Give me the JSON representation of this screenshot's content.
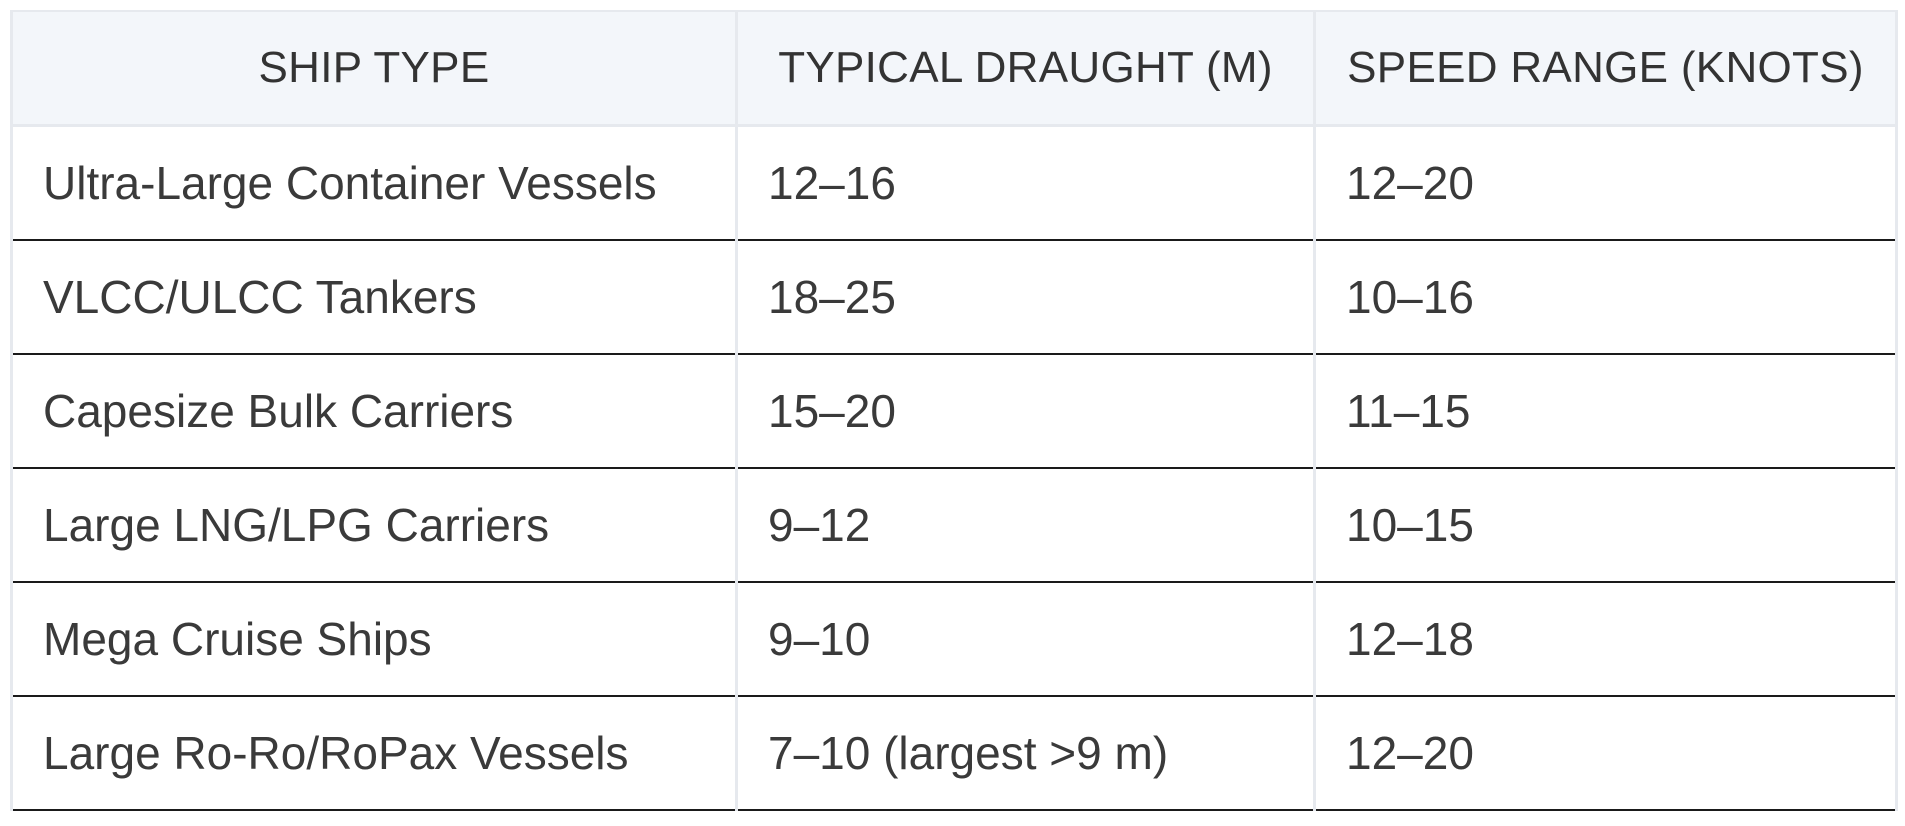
{
  "table": {
    "headers": [
      "SHIP TYPE",
      "TYPICAL DRAUGHT (M)",
      "SPEED RANGE (KNOTS)"
    ],
    "rows": [
      [
        "Ultra-Large Container Vessels",
        "12–16",
        "12–20"
      ],
      [
        "VLCC/ULCC Tankers",
        "18–25",
        "10–16"
      ],
      [
        "Capesize Bulk Carriers",
        "15–20",
        "11–15"
      ],
      [
        "Large LNG/LPG Carriers",
        "9–12",
        "10–15"
      ],
      [
        "Mega Cruise Ships",
        "9–10",
        "12–18"
      ],
      [
        "Large Ro-Ro/RoPax Vessels",
        "7–10 (largest >9 m)",
        "12–20"
      ]
    ]
  }
}
